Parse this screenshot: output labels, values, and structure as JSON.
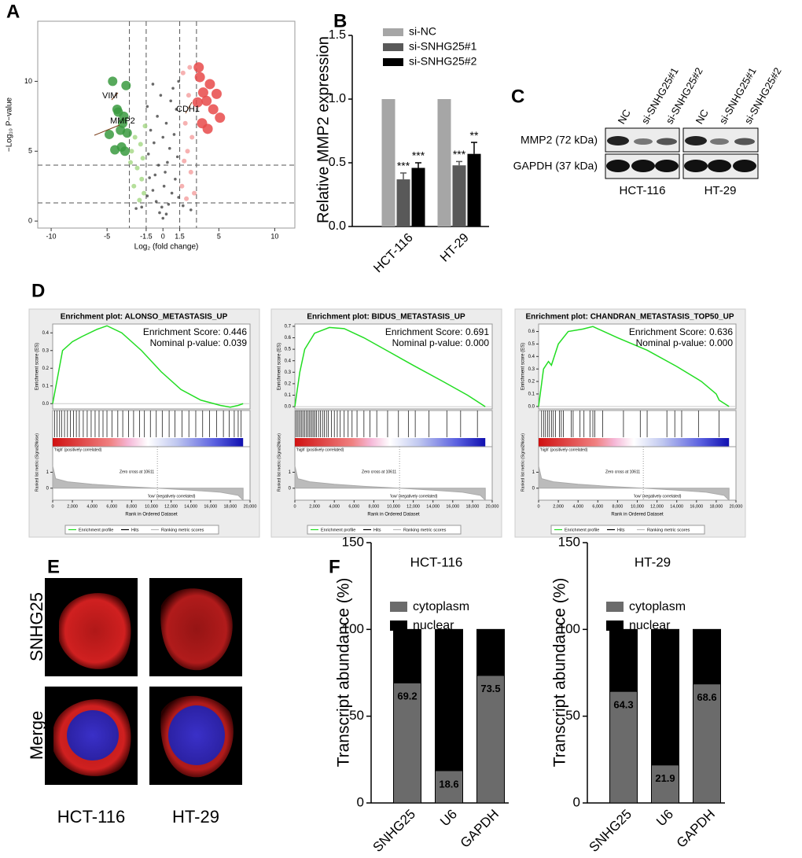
{
  "panel_labels": [
    "A",
    "B",
    "C",
    "D",
    "E",
    "F"
  ],
  "blot": {
    "lanes": [
      "NC",
      "si-SNHG25#1",
      "si-SNHG25#2",
      "NC",
      "si-SNHG25#1",
      "si-SNHG25#2"
    ],
    "rows": [
      "MMP2 (72 kDa)",
      "GAPDH (37 kDa)"
    ],
    "cell_lines": [
      "HCT-116",
      "HT-29"
    ]
  },
  "images": {
    "rows": [
      "SNHG25",
      "Merge"
    ],
    "columns": [
      "HCT-116",
      "HT-29"
    ]
  },
  "chart_data": [
    {
      "type": "scatter",
      "xlabel": "Log₂ (fold change)",
      "ylabel": "−Log₁₀ P−value",
      "xlim": [
        -11.2,
        11.8
      ],
      "ylim": [
        -0.5,
        14.3
      ],
      "xticks": [
        -10,
        -5,
        -1.5,
        0,
        1.5,
        5,
        10
      ],
      "yticks": [
        0,
        5,
        10
      ],
      "vlines": [
        -3,
        -1.5,
        1.5,
        3
      ],
      "hlines": [
        1.3,
        4
      ],
      "annotations": [
        "VIM",
        "MMP2",
        "CDH1"
      ],
      "series": [
        {
          "color": "#444444",
          "x": [
            0,
            0.3,
            -0.3,
            0.5,
            -0.6,
            0.8,
            -0.9,
            1.1,
            -1.2,
            0.2,
            -0.4,
            1.3,
            -1.3,
            0.6,
            -0.8,
            1.0,
            -1.1,
            0.3,
            -0.5,
            1.2,
            -1.4,
            0.7,
            -0.2,
            0.9,
            1.4,
            -0.9,
            0.1,
            -0.1,
            0.4,
            -0.7,
            1.4,
            -1.4,
            0.0,
            2.5,
            -2.4,
            1.8,
            -1.9
          ],
          "values": [
            0.2,
            0.5,
            0.6,
            1.2,
            1.4,
            2,
            2.2,
            3,
            3.1,
            3.5,
            4,
            4.6,
            4.8,
            5.2,
            5.6,
            6.2,
            6.5,
            7,
            7.5,
            8,
            8.2,
            8.6,
            9,
            9.5,
            10,
            9.8,
            2.5,
            1,
            4.2,
            3.3,
            1.7,
            1.8,
            6.0,
            0.8,
            0.9,
            1.1,
            1.0
          ]
        },
        {
          "color": "#a8d98a",
          "x": [
            -2.5,
            -2,
            -2.8,
            -1.8,
            -2.3,
            -1.9,
            -2.6,
            -1.7,
            -2.1,
            -2.9,
            -1.6
          ],
          "values": [
            6,
            5.5,
            5,
            4.5,
            3.8,
            3,
            2.5,
            2,
            1.5,
            4.2,
            6.8
          ]
        },
        {
          "color": "#f4a3a3",
          "x": [
            2,
            2.3,
            1.8,
            2.6,
            2.2,
            1.9,
            2.5,
            1.7,
            2.8,
            2.1,
            2.4
          ],
          "values": [
            7,
            9,
            10.6,
            6,
            5,
            4.3,
            3.5,
            2.5,
            2,
            1.6,
            11
          ]
        },
        {
          "color": "#3a9a3f",
          "x": [
            -4.5,
            -3.3,
            -4.1,
            -3.5,
            -3.8,
            -4.8,
            -3.2,
            -3.7,
            -4.3,
            -3.4,
            -3.6,
            -4
          ],
          "values": [
            10,
            9.7,
            8,
            7.5,
            6.5,
            6.2,
            6.3,
            5.3,
            5.1,
            5.0,
            7.0,
            7.8
          ]
        },
        {
          "color": "#e84a4a",
          "x": [
            3.3,
            4.2,
            3.6,
            3.9,
            4.5,
            3.1,
            5.1,
            4.8,
            3.5,
            4.0,
            3.2
          ],
          "values": [
            10.3,
            9.8,
            9.2,
            8.6,
            8.0,
            8.5,
            7.4,
            9.1,
            7.0,
            6.6,
            11.0
          ]
        }
      ]
    },
    {
      "type": "bar",
      "ylabel": "Relative MMP2 expression",
      "categories": [
        "HCT-116",
        "HT-29"
      ],
      "ylim": [
        0,
        1.5
      ],
      "yticks": [
        {
          "value": 0,
          "label": "0.0"
        },
        {
          "value": 0.5,
          "label": "0.5"
        },
        {
          "value": 1,
          "label": "1.0"
        },
        {
          "value": 1.5,
          "label": "1.5"
        }
      ],
      "series": [
        {
          "name": "si-NC",
          "color": "#a6a6a6",
          "values": [
            1,
            1
          ],
          "errors": [
            0,
            0
          ],
          "significance": [
            null,
            null
          ]
        },
        {
          "name": "si-SNHG25#1",
          "color": "#595959",
          "values": [
            0.37,
            0.48
          ],
          "errors": [
            0.05,
            0.03
          ],
          "significance": [
            "***",
            "***"
          ]
        },
        {
          "name": "si-SNHG25#2",
          "color": "#000000",
          "values": [
            0.46,
            0.57
          ],
          "errors": [
            0.04,
            0.09
          ],
          "significance": [
            "***",
            "**"
          ]
        }
      ]
    },
    {
      "type": "gsea",
      "title": "Enrichment plot: ALONSO_METASTASIS_UP",
      "annotations": [
        "Enrichment Score: 0.446",
        "Nominal p-value: 0.039"
      ],
      "ylabel": "Enrichment score (ES)",
      "ylabel2": "Ranked list metric (Signal2Noise)",
      "xlabel": "Rank in Ordered Dataset",
      "metric_labels": [
        "'high' (positively correlated)",
        "Zero cross at 10611",
        "'low' (negatively correlated)"
      ],
      "legend": [
        "Enrichment profile",
        "Hits",
        "Ranking metric scores"
      ],
      "color": "#22dd22",
      "xlim": [
        0,
        20000
      ],
      "xticks": [
        0,
        {
          "value": 2000,
          "label": "2,000"
        },
        {
          "value": 4000,
          "label": "4,000"
        },
        {
          "value": 6000,
          "label": "6,000"
        },
        {
          "value": 8000,
          "label": "8,000"
        },
        {
          "value": 10000,
          "label": "10,000"
        },
        {
          "value": 12000,
          "label": "12,000"
        },
        {
          "value": 14000,
          "label": "14,000"
        },
        {
          "value": 16000,
          "label": "16,000"
        },
        {
          "value": 18000,
          "label": "18,000"
        },
        {
          "value": 20000,
          "label": "20,000"
        }
      ],
      "ylim": [
        -0.03,
        0.45
      ],
      "yticks": [
        {
          "value": 0,
          "label": "0.0"
        },
        {
          "value": 0.1,
          "label": "0.1"
        },
        {
          "value": 0.2,
          "label": "0.2"
        },
        {
          "value": 0.3,
          "label": "0.3"
        },
        {
          "value": 0.4,
          "label": "0.4"
        }
      ],
      "x": [
        0,
        500,
        1000,
        2000,
        3000,
        4500,
        5500,
        7000,
        9000,
        11000,
        13000,
        15000,
        17000,
        18000,
        18800,
        19300
      ],
      "values": [
        0,
        0.15,
        0.3,
        0.35,
        0.38,
        0.42,
        0.44,
        0.4,
        0.3,
        0.18,
        0.08,
        0.02,
        -0.01,
        -0.02,
        -0.01,
        0.0
      ],
      "hits": [
        200,
        450,
        700,
        900,
        1200,
        1500,
        1800,
        2100,
        2400,
        2700,
        3100,
        3500,
        3900,
        4300,
        4700,
        5100,
        5500,
        6000,
        6600,
        7100,
        7700,
        8200,
        8800,
        9300,
        9900,
        10500,
        11100,
        11800,
        12400,
        13100,
        13800,
        14500,
        15200,
        15900,
        16600,
        17300,
        17900,
        18400,
        18800,
        19100
      ],
      "y2lim": [
        -0.75,
        2.6
      ],
      "y2ticks": [
        0,
        1
      ],
      "metric": {
        "x": [
          0,
          300,
          1500,
          4000,
          7000,
          10611,
          14000,
          17000,
          18800,
          19300
        ],
        "values": [
          1.4,
          0.6,
          0.4,
          0.25,
          0.12,
          0,
          -0.12,
          -0.25,
          -0.45,
          -0.75
        ]
      }
    },
    {
      "type": "gsea",
      "title": "Enrichment plot: BIDUS_METASTASIS_UP",
      "annotations": [
        "Enrichment Score: 0.691",
        "Nominal p-value: 0.000"
      ],
      "ylabel": "Enrichment score (ES)",
      "ylabel2": "Ranked list metric (Signal2Noise)",
      "xlabel": "Rank in Ordered Dataset",
      "metric_labels": [
        "'high' (positively correlated)",
        "Zero cross at 10611",
        "'low' (negatively correlated)"
      ],
      "legend": [
        "Enrichment profile",
        "Hits",
        "Ranking metric scores"
      ],
      "color": "#22dd22",
      "xlim": [
        0,
        20000
      ],
      "xticks": [
        0,
        {
          "value": 2000,
          "label": "2,000"
        },
        {
          "value": 4000,
          "label": "4,000"
        },
        {
          "value": 6000,
          "label": "6,000"
        },
        {
          "value": 8000,
          "label": "8,000"
        },
        {
          "value": 10000,
          "label": "10,000"
        },
        {
          "value": 12000,
          "label": "12,000"
        },
        {
          "value": 14000,
          "label": "14,000"
        },
        {
          "value": 16000,
          "label": "16,000"
        },
        {
          "value": 18000,
          "label": "18,000"
        },
        {
          "value": 20000,
          "label": "20,000"
        }
      ],
      "ylim": [
        -0.02,
        0.72
      ],
      "yticks": [
        {
          "value": 0,
          "label": "0.0"
        },
        {
          "value": 0.1,
          "label": "0.1"
        },
        {
          "value": 0.2,
          "label": "0.2"
        },
        {
          "value": 0.3,
          "label": "0.3"
        },
        {
          "value": 0.4,
          "label": "0.4"
        },
        {
          "value": 0.5,
          "label": "0.5"
        },
        {
          "value": 0.6,
          "label": "0.6"
        },
        {
          "value": 0.7,
          "label": "0.7"
        }
      ],
      "x": [
        0,
        500,
        1000,
        2000,
        3500,
        5000,
        7000,
        9500,
        12000,
        15000,
        17500,
        19300
      ],
      "values": [
        0,
        0.3,
        0.5,
        0.64,
        0.69,
        0.68,
        0.6,
        0.48,
        0.36,
        0.22,
        0.1,
        0
      ],
      "hits": [
        100,
        250,
        400,
        550,
        700,
        850,
        1000,
        1150,
        1300,
        1450,
        1600,
        1750,
        1900,
        2050,
        2200,
        2400,
        2600,
        2800,
        3000,
        3200,
        3400,
        3700,
        4000,
        4300,
        4600,
        5000,
        5400,
        5800,
        6300,
        7000,
        7600,
        8300,
        9400,
        10500,
        11500,
        12200,
        13600,
        15400,
        16800,
        18500
      ],
      "y2lim": [
        -0.75,
        2.6
      ],
      "y2ticks": [
        0,
        1
      ],
      "metric": {
        "x": [
          0,
          300,
          1500,
          4000,
          7000,
          10611,
          14000,
          17000,
          18800,
          19300
        ],
        "values": [
          1.4,
          0.6,
          0.4,
          0.25,
          0.12,
          0,
          -0.12,
          -0.25,
          -0.45,
          -0.75
        ]
      }
    },
    {
      "type": "gsea",
      "title": "Enrichment plot: CHANDRAN_METASTASIS_TOP50_UP",
      "annotations": [
        "Enrichment Score: 0.636",
        "Nominal p-value: 0.000"
      ],
      "ylabel": "Enrichment score (ES)",
      "ylabel2": "Ranked list metric (Signal2Noise)",
      "xlabel": "Rank in Ordered Dataset",
      "metric_labels": [
        "'high' (positively correlated)",
        "Zero cross at 10611",
        "'low' (negatively correlated)"
      ],
      "legend": [
        "Enrichment profile",
        "Hits",
        "Ranking metric scores"
      ],
      "color": "#22dd22",
      "xlim": [
        0,
        20000
      ],
      "xticks": [
        0,
        {
          "value": 2000,
          "label": "2,000"
        },
        {
          "value": 4000,
          "label": "4,000"
        },
        {
          "value": 6000,
          "label": "6,000"
        },
        {
          "value": 8000,
          "label": "8,000"
        },
        {
          "value": 10000,
          "label": "10,000"
        },
        {
          "value": 12000,
          "label": "12,000"
        },
        {
          "value": 14000,
          "label": "14,000"
        },
        {
          "value": 16000,
          "label": "16,000"
        },
        {
          "value": 18000,
          "label": "18,000"
        },
        {
          "value": 20000,
          "label": "20,000"
        }
      ],
      "ylim": [
        -0.02,
        0.66
      ],
      "yticks": [
        {
          "value": 0,
          "label": "0.0"
        },
        {
          "value": 0.1,
          "label": "0.1"
        },
        {
          "value": 0.2,
          "label": "0.2"
        },
        {
          "value": 0.3,
          "label": "0.3"
        },
        {
          "value": 0.4,
          "label": "0.4"
        },
        {
          "value": 0.5,
          "label": "0.5"
        },
        {
          "value": 0.6,
          "label": "0.6"
        }
      ],
      "x": [
        0,
        500,
        1000,
        1300,
        2000,
        3000,
        4500,
        5500,
        8000,
        11000,
        14000,
        16500,
        18000,
        18300,
        19300
      ],
      "values": [
        0,
        0.3,
        0.36,
        0.33,
        0.5,
        0.6,
        0.62,
        0.64,
        0.55,
        0.45,
        0.32,
        0.2,
        0.1,
        0.05,
        0
      ],
      "hits": [
        300,
        500,
        700,
        900,
        1100,
        1300,
        1500,
        1700,
        2100,
        2300,
        2500,
        3300,
        3500,
        4200,
        4600,
        5200,
        5500,
        5700,
        6500,
        8600,
        10300,
        11000,
        13000,
        13800,
        14500,
        16200,
        18300
      ],
      "y2lim": [
        -0.75,
        2.6
      ],
      "y2ticks": [
        0,
        1
      ],
      "metric": {
        "x": [
          0,
          300,
          1500,
          4000,
          7000,
          10611,
          14000,
          17000,
          18800,
          19300
        ],
        "values": [
          1.4,
          0.6,
          0.4,
          0.25,
          0.12,
          0,
          -0.12,
          -0.25,
          -0.45,
          -0.75
        ]
      }
    },
    {
      "type": "stacked_bar",
      "title": "HCT-116",
      "ylabel": "Transcript abundance (%)",
      "categories": [
        "SNHG25",
        "U6",
        "GAPDH"
      ],
      "ylim": [
        0,
        150
      ],
      "yticks": [
        0,
        50,
        100,
        150
      ],
      "series": [
        {
          "name": "cytoplasm",
          "color": "#6b6b6b",
          "values": [
            69.2,
            18.6,
            73.5
          ]
        },
        {
          "name": "nuclear",
          "color": "#000000",
          "values": [
            30.8,
            81.4,
            26.5
          ]
        }
      ]
    },
    {
      "type": "stacked_bar",
      "title": "HT-29",
      "ylabel": "Transcript abundance (%)",
      "categories": [
        "SNHG25",
        "U6",
        "GAPDH"
      ],
      "ylim": [
        0,
        150
      ],
      "yticks": [
        0,
        50,
        100,
        150
      ],
      "series": [
        {
          "name": "cytoplasm",
          "color": "#6b6b6b",
          "values": [
            64.3,
            21.9,
            68.6
          ]
        },
        {
          "name": "nuclear",
          "color": "#000000",
          "values": [
            35.7,
            78.1,
            31.4
          ]
        }
      ]
    }
  ]
}
